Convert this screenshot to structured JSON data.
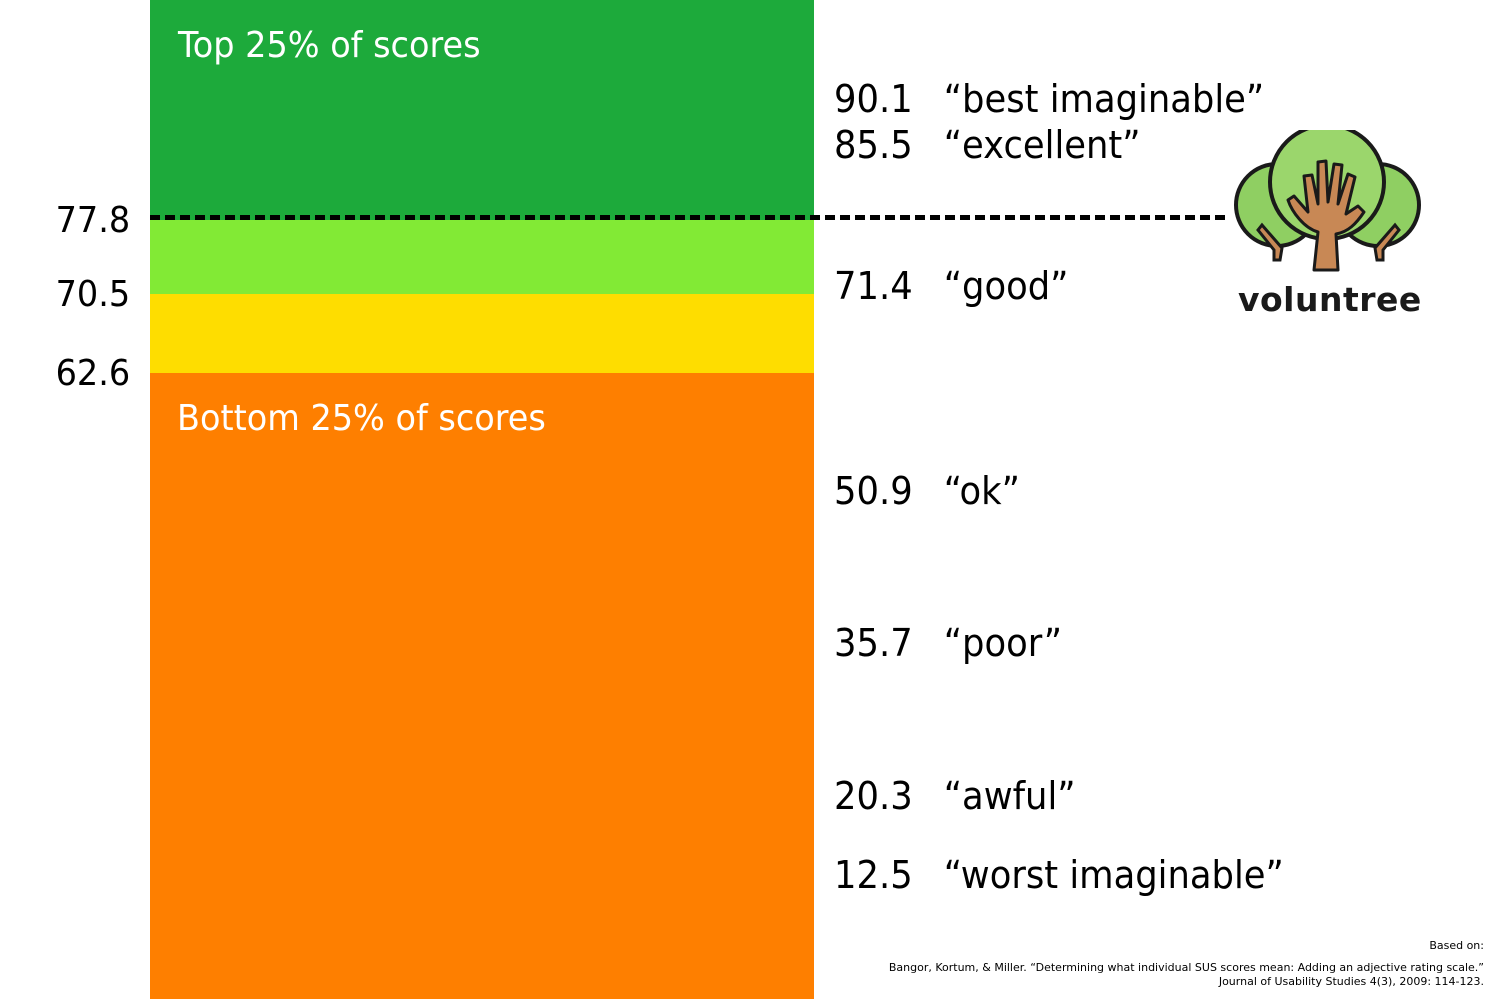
{
  "bands": {
    "top_label": "Top 25% of scores",
    "bottom_label": "Bottom 25% of scores",
    "colors": {
      "top": "#1daa3b",
      "good": "#82ea35",
      "ok": "#fedd00",
      "bottom": "#fe7f00"
    }
  },
  "axis_ticks": [
    "77.8",
    "70.5",
    "62.6"
  ],
  "adjectives": [
    {
      "score": "90.1",
      "word": "“best imaginable”"
    },
    {
      "score": "85.5",
      "word": "“excellent”"
    },
    {
      "score": "71.4",
      "word": "“good”"
    },
    {
      "score": "50.9",
      "word": "“ok”"
    },
    {
      "score": "35.7",
      "word": "“poor”"
    },
    {
      "score": "20.3",
      "word": "“awful”"
    },
    {
      "score": "12.5",
      "word": "“worst imaginable”"
    }
  ],
  "logo": {
    "text": "voluntree",
    "icon": "tree-hand-icon"
  },
  "reference": {
    "heading": "Based on:",
    "line1": "Bangor, Kortum, & Miller. “Determining what individual SUS scores mean: Adding an adjective rating scale.”",
    "line2": "Journal of Usability Studies 4(3), 2009: 114-123."
  }
}
